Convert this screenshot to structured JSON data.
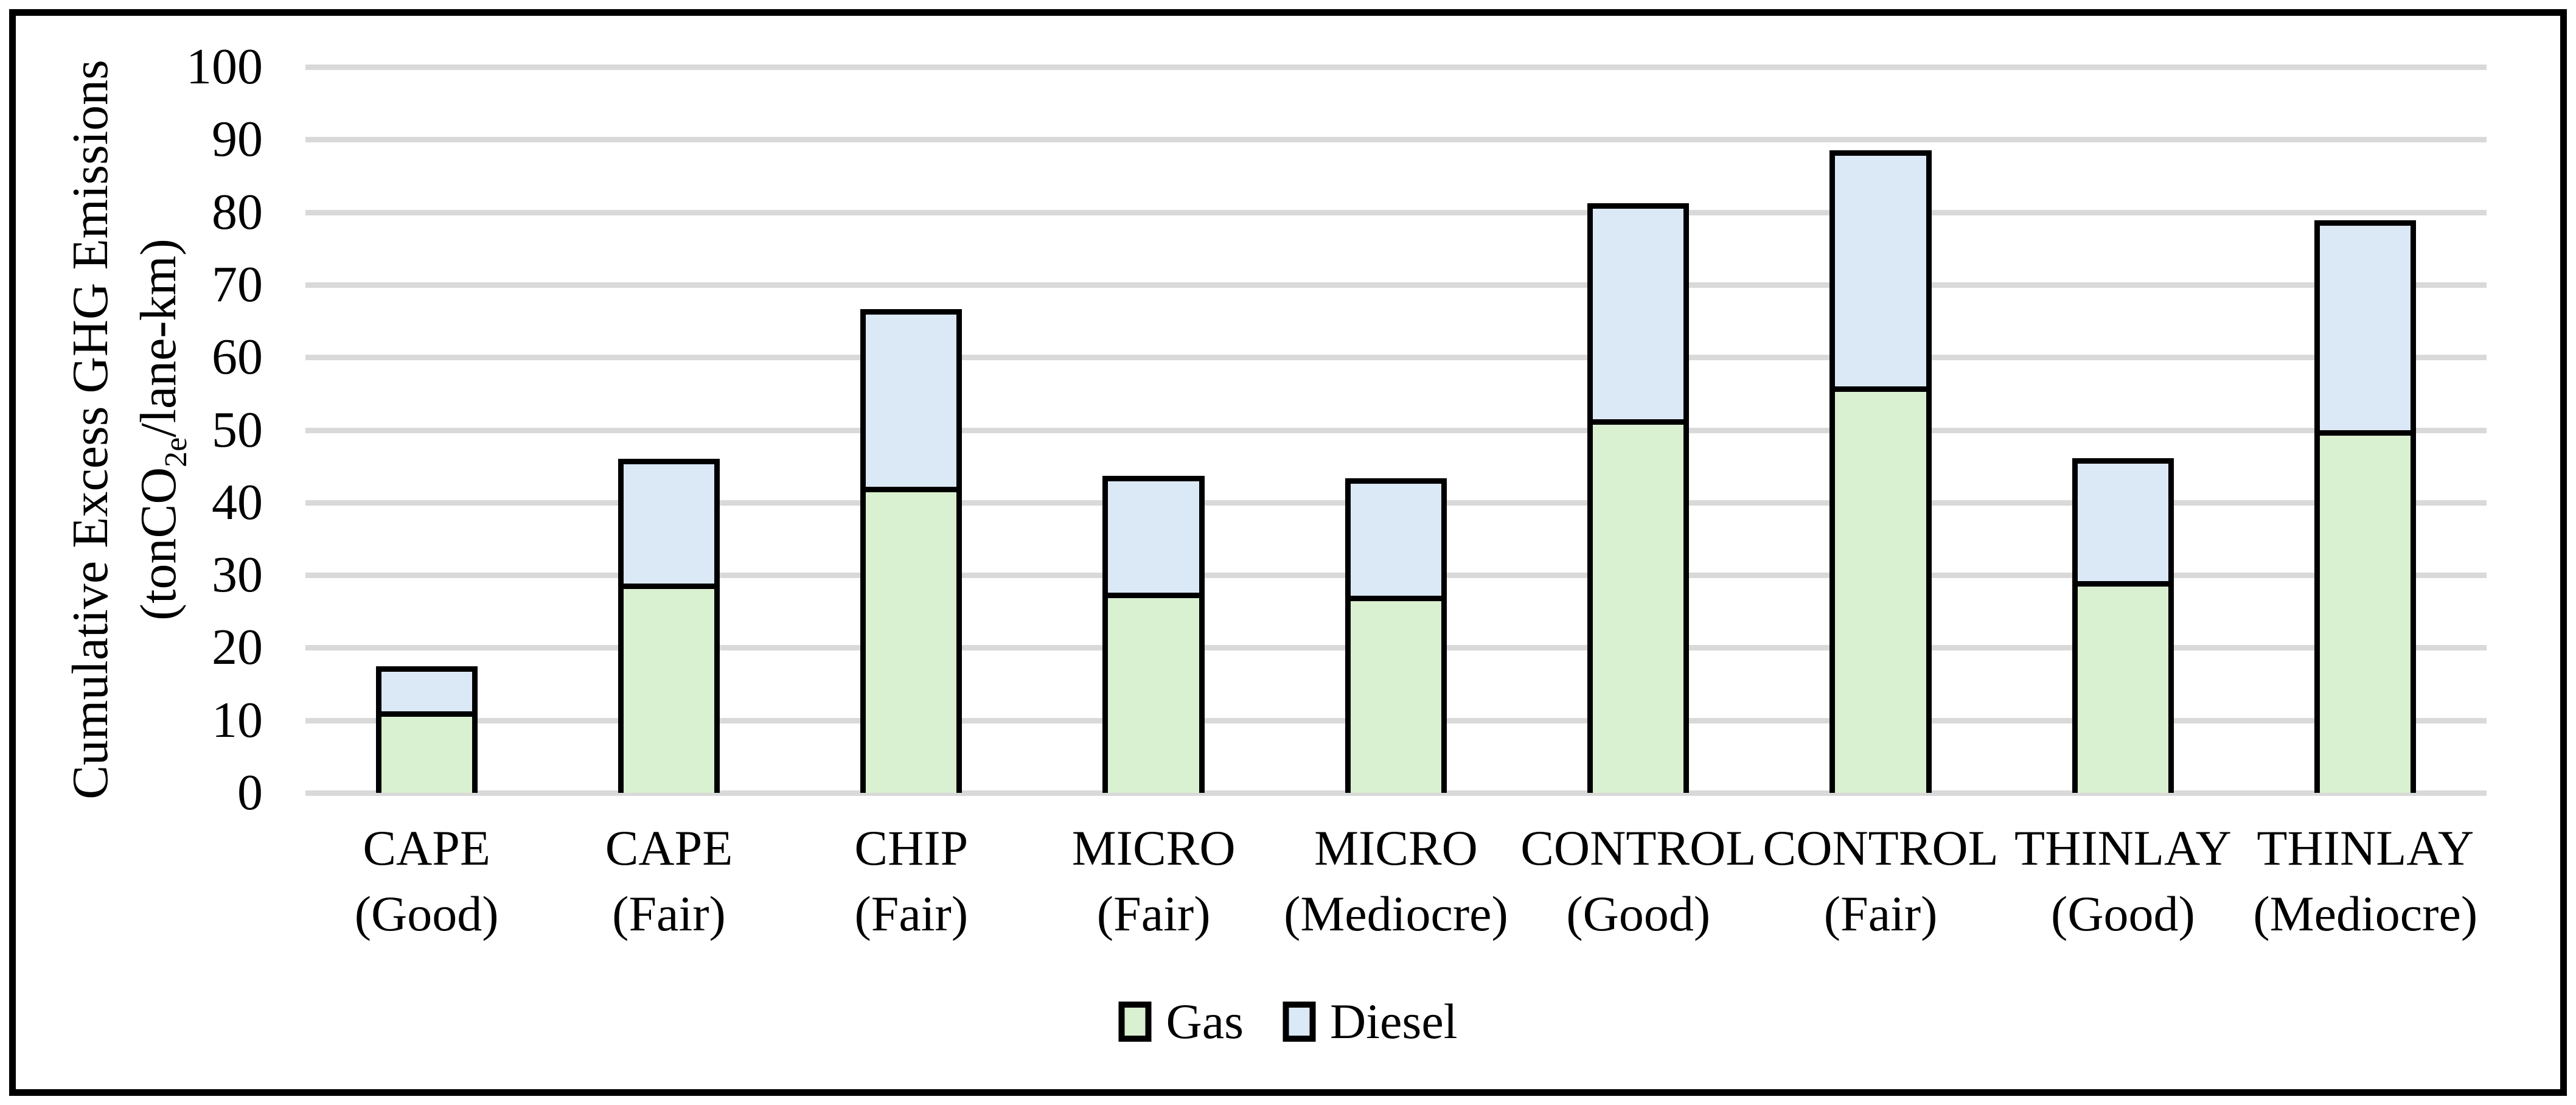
{
  "chart_data": {
    "type": "bar",
    "stacked": true,
    "title": "",
    "categories": [
      {
        "line1": "CAPE",
        "line2": "(Good)"
      },
      {
        "line1": "CAPE",
        "line2": "(Fair)"
      },
      {
        "line1": "CHIP",
        "line2": "(Fair)"
      },
      {
        "line1": "MICRO",
        "line2": "(Fair)"
      },
      {
        "line1": "MICRO",
        "line2": "(Mediocre)"
      },
      {
        "line1": "CONTROL",
        "line2": "(Good)"
      },
      {
        "line1": "CONTROL",
        "line2": "(Fair)"
      },
      {
        "line1": "THINLAY",
        "line2": "(Good)"
      },
      {
        "line1": "THINLAY",
        "line2": "(Mediocre)"
      }
    ],
    "series": [
      {
        "name": "Gas",
        "color": "#D9F0D1",
        "values": [
          11.2,
          28.8,
          42.2,
          27.6,
          27.2,
          51.5,
          56.0,
          29.2,
          50.0
        ]
      },
      {
        "name": "Diesel",
        "color": "#DBE8F6",
        "values": [
          6.2,
          17.2,
          24.4,
          16.1,
          16.1,
          29.7,
          32.5,
          16.9,
          28.9
        ]
      }
    ],
    "stack_totals": [
      17.4,
      46.0,
      66.6,
      43.7,
      43.3,
      81.2,
      88.5,
      46.1,
      78.9
    ],
    "ylabel_line1": "Cumulative Excess GHG Emissions",
    "ylabel_line2": {
      "pre": "(tonCO",
      "sub": "2e",
      "post": "/lane-km)"
    },
    "xlabel": "",
    "ylim": [
      0,
      100
    ],
    "yticks": [
      0,
      10,
      20,
      30,
      40,
      50,
      60,
      70,
      80,
      90,
      100
    ],
    "grid": true,
    "legend_position": "bottom-center"
  },
  "colors": {
    "gas_fill": "#D9F0D1",
    "diesel_fill": "#DBE8F6",
    "gridline": "#D9D9D9",
    "bar_outline": "#000000",
    "frame": "#000000",
    "background": "#FFFFFF"
  }
}
